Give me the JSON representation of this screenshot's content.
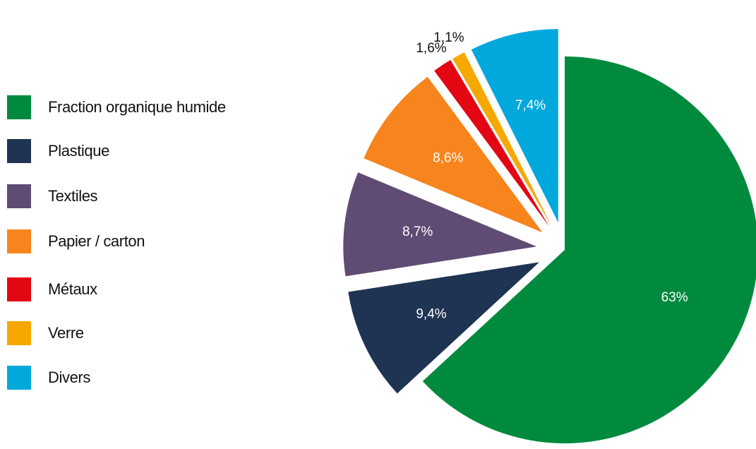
{
  "chart_data": {
    "type": "pie",
    "title": "",
    "legend_position": "left",
    "slices": [
      {
        "label": "Fraction organique humide",
        "value": 63,
        "display": "63%",
        "color": "#008a3e",
        "label_color": "#ffffff",
        "label_inside": true
      },
      {
        "label": "Plastique",
        "value": 9.4,
        "display": "9,4%",
        "color": "#1f3353",
        "label_color": "#ffffff",
        "label_inside": true
      },
      {
        "label": "Textiles",
        "value": 8.7,
        "display": "8,7%",
        "color": "#604b74",
        "label_color": "#ffffff",
        "label_inside": true
      },
      {
        "label": "Papier / carton",
        "value": 8.6,
        "display": "8,6%",
        "color": "#f7841c",
        "label_color": "#ffffff",
        "label_inside": true
      },
      {
        "label": "Métaux",
        "value": 1.6,
        "display": "1,6%",
        "color": "#e30613",
        "label_color": "#111111",
        "label_inside": false
      },
      {
        "label": "Verre",
        "value": 1.1,
        "display": "1,1%",
        "color": "#f6a800",
        "label_color": "#111111",
        "label_inside": false
      },
      {
        "label": "Divers",
        "value": 7.4,
        "display": "7,4%",
        "color": "#00a8dc",
        "label_color": "#ffffff",
        "label_inside": true
      }
    ]
  }
}
